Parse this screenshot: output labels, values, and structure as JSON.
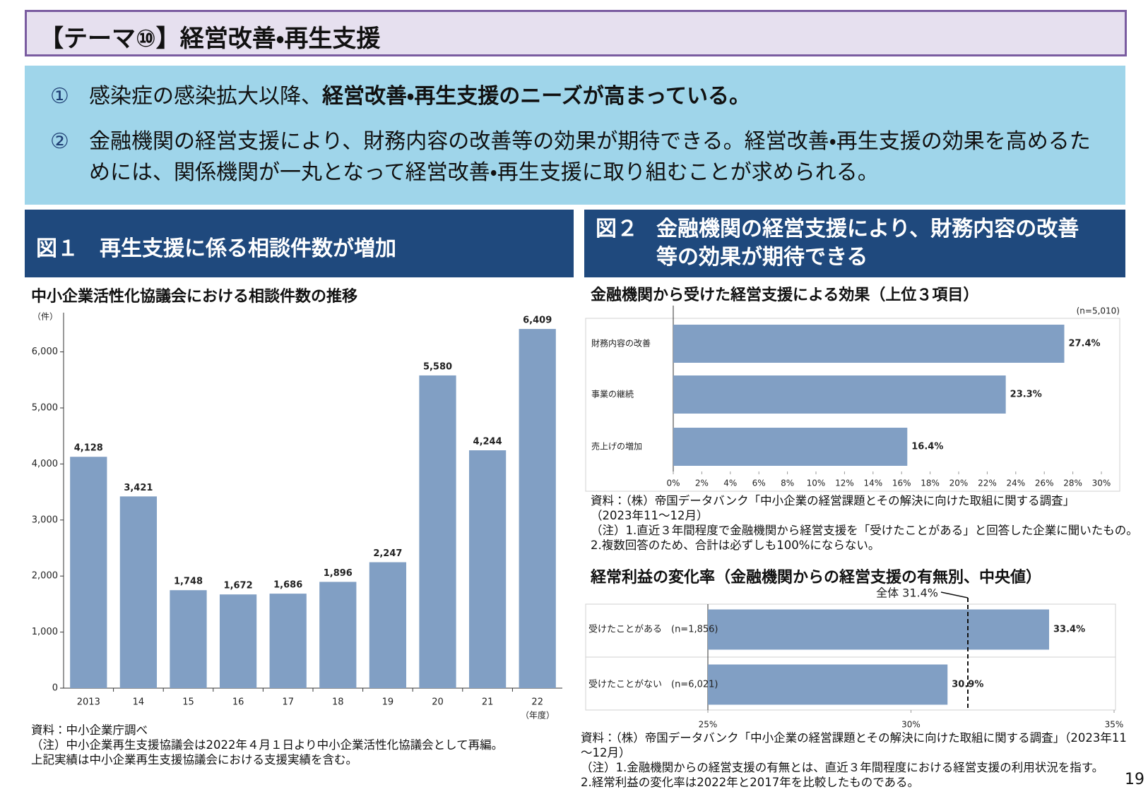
{
  "header": {
    "title": "【テーマ⑩】経営改善・再生支援"
  },
  "summary": [
    {
      "number": "①",
      "text_plain": "感染症の感染拡大以降、",
      "text_bold": "経営改善・再生支援のニーズが高まっている。"
    },
    {
      "number": "②",
      "text_plain": "金融機関の経営支援により、財務内容の改善等の効果が期待できる。経営改善・再生支援の効果を高めるためには、関係機関が一丸となって経営改善・再生支援に取り組むことが求められる。"
    }
  ],
  "figure1": {
    "number": "図１",
    "heading": "再生支援に係る相談件数が増加"
  },
  "figure2": {
    "number": "図２",
    "heading_lines": [
      "金融機関の経営支援により、財務内容の改善",
      "等の効果が期待できる"
    ]
  },
  "chart_data": [
    {
      "type": "bar",
      "title": "中小企業活性化協議会における相談件数の推移",
      "y_label": "（件）",
      "x_label": "（年度）",
      "categories": [
        "2013",
        "14",
        "15",
        "16",
        "17",
        "18",
        "19",
        "20",
        "21",
        "22"
      ],
      "values": [
        4128,
        3421,
        1748,
        1672,
        1686,
        1896,
        2247,
        5580,
        4244,
        6409
      ],
      "value_labels": [
        "4,128",
        "3,421",
        "1,748",
        "1,672",
        "1,686",
        "1,896",
        "2,247",
        "5,580",
        "4,244",
        "6,409"
      ],
      "color": "#819fc4",
      "ylim": [
        0,
        6700
      ],
      "yticks": [
        0,
        {
          "value": 1000,
          "label": "1,000"
        },
        {
          "value": 2000,
          "label": "2,000"
        },
        {
          "value": 3000,
          "label": "3,000"
        },
        {
          "value": 4000,
          "label": "4,000"
        },
        {
          "value": 5000,
          "label": "5,000"
        },
        {
          "value": 6000,
          "label": "6,000"
        }
      ],
      "notes": [
        "資料：中小企業庁調べ",
        "（注）中小企業再生支援協議会は2022年４月１日より中小企業活性化協議会として再編。",
        "上記実績は中小企業再生支援協議会における支援実績を含む。"
      ]
    },
    {
      "type": "hbar",
      "title": "金融機関から受けた経営支援による効果（上位３項目）",
      "sample_note": "(n=5,010)",
      "categories": [
        "財務内容の改善",
        "事業の継続",
        "売上げの増加"
      ],
      "values": [
        27.4,
        23.3,
        16.4
      ],
      "value_labels": [
        "27.4%",
        "23.3%",
        "16.4%"
      ],
      "color": "#819fc4",
      "xlim": [
        0,
        30
      ],
      "xticks": [
        {
          "value": 0,
          "label": "0%"
        },
        {
          "value": 2,
          "label": "2%"
        },
        {
          "value": 4,
          "label": "4%"
        },
        {
          "value": 6,
          "label": "6%"
        },
        {
          "value": 8,
          "label": "8%"
        },
        {
          "value": 10,
          "label": "10%"
        },
        {
          "value": 12,
          "label": "12%"
        },
        {
          "value": 14,
          "label": "14%"
        },
        {
          "value": 16,
          "label": "16%"
        },
        {
          "value": 18,
          "label": "18%"
        },
        {
          "value": 20,
          "label": "20%"
        },
        {
          "value": 22,
          "label": "22%"
        },
        {
          "value": 24,
          "label": "24%"
        },
        {
          "value": 26,
          "label": "26%"
        },
        {
          "value": 28,
          "label": "28%"
        },
        {
          "value": 30,
          "label": "30%"
        }
      ],
      "notes": [
        "資料：（株）帝国データバンク「中小企業の経営課題とその解決に向けた取組に関する調査」",
        "（2023年11～12月）",
        "（注）1.直近３年間程度で金融機関から経営支援を「受けたことがある」と回答した企業に聞いたもの。",
        "2.複数回答のため、合計は必ずしも100%にならない。"
      ]
    },
    {
      "type": "hbar",
      "title": "経常利益の変化率（金融機関からの経営支援の有無別、中央値）",
      "categories": [
        "受けたことがある　(n=1,856)",
        "受けたことがない　(n=6,021)"
      ],
      "values": [
        33.4,
        30.9
      ],
      "value_labels": [
        "33.4%",
        "30.9%"
      ],
      "color": "#819fc4",
      "xlim": [
        25,
        35
      ],
      "xticks": [
        {
          "value": 25,
          "label": "25%"
        },
        {
          "value": 30,
          "label": "30%"
        },
        {
          "value": 35,
          "label": "35%"
        }
      ],
      "reference_line": {
        "value": 31.4,
        "label": "全体 31.4%"
      },
      "notes": [
        "資料：（株）帝国データバンク「中小企業の経営課題とその解決に向けた取組に関する調査」（2023年11～12月）",
        "（注）1.金融機関からの経営支援の有無とは、直近３年間程度における経営支援の利用状況を指す。",
        "2.経常利益の変化率は2022年と2017年を比較したものである。"
      ]
    }
  ],
  "page_number": "19"
}
